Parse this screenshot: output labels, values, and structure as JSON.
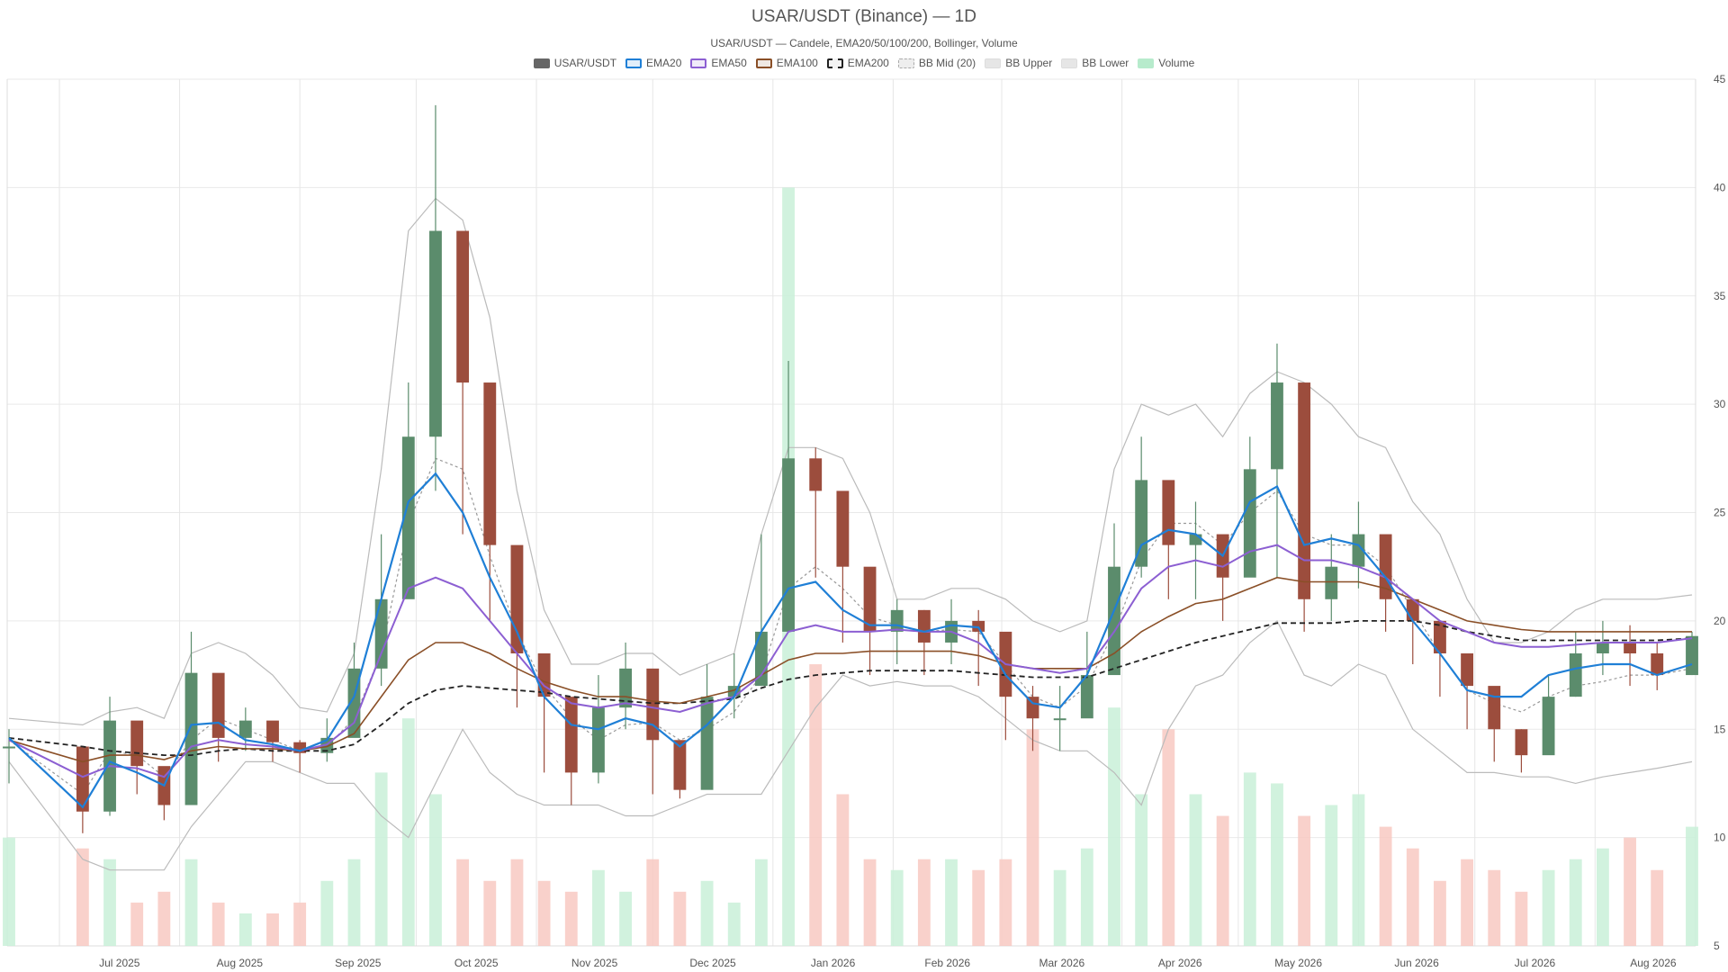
{
  "chart_data": {
    "type": "candlestick",
    "title": "USAR/USDT (Binance) — 1D",
    "subtitle": "USAR/USDT — Candele, EMA20/50/100/200, Bollinger, Volume",
    "legend": [
      {
        "name": "USAR/USDT",
        "color": "#666666",
        "style": "solid-fill"
      },
      {
        "name": "EMA20",
        "color": "#1f7fd6",
        "style": "line"
      },
      {
        "name": "EMA50",
        "color": "#8c5fd2",
        "style": "line"
      },
      {
        "name": "EMA100",
        "color": "#8a4f27",
        "style": "line"
      },
      {
        "name": "EMA200",
        "color": "#222222",
        "style": "dashed"
      },
      {
        "name": "BB Mid (20)",
        "color": "#aaaaaa",
        "style": "dotted"
      },
      {
        "name": "BB Upper",
        "color": "#bbbbbb",
        "style": "line"
      },
      {
        "name": "BB Lower",
        "color": "#bbbbbb",
        "style": "line"
      },
      {
        "name": "Volume",
        "color": "#b7ebcc",
        "style": "fill"
      }
    ],
    "x_labels": [
      "Jul 2025",
      "Aug 2025",
      "Sep 2025",
      "Oct 2025",
      "Nov 2025",
      "Dec 2025",
      "Jan 2026",
      "Feb 2026",
      "Mar 2026",
      "Apr 2026",
      "May 2026",
      "Jun 2026",
      "Jul 2026",
      "Aug 2026"
    ],
    "y_ticks": [
      5,
      10,
      15,
      20,
      25,
      30,
      35,
      40,
      45
    ],
    "ylim": [
      5,
      45
    ],
    "legend_position": "top-center",
    "grid": true,
    "colors": {
      "up": "#5b8c6c",
      "down": "#9c4d3d",
      "vol_up": "#c9f0d8",
      "vol_down": "#f8c9c2"
    },
    "x": [
      "2025-06-18",
      "2025-07-07",
      "2025-07-14",
      "2025-07-21",
      "2025-07-28",
      "2025-08-04",
      "2025-08-11",
      "2025-08-18",
      "2025-08-25",
      "2025-09-01",
      "2025-09-08",
      "2025-09-15",
      "2025-09-22",
      "2025-09-29",
      "2025-10-06",
      "2025-10-13",
      "2025-10-20",
      "2025-10-27",
      "2025-11-03",
      "2025-11-10",
      "2025-11-17",
      "2025-11-24",
      "2025-12-01",
      "2025-12-08",
      "2025-12-15",
      "2025-12-22",
      "2025-12-29",
      "2026-01-05",
      "2026-01-12",
      "2026-01-19",
      "2026-01-26",
      "2026-02-02",
      "2026-02-09",
      "2026-02-16",
      "2026-02-23",
      "2026-03-02",
      "2026-03-09",
      "2026-03-16",
      "2026-03-23",
      "2026-03-30",
      "2026-04-06",
      "2026-04-13",
      "2026-04-20",
      "2026-04-27",
      "2026-05-04",
      "2026-05-11",
      "2026-05-18",
      "2026-05-25",
      "2026-06-01",
      "2026-06-08",
      "2026-06-15",
      "2026-06-22",
      "2026-06-29",
      "2026-07-06",
      "2026-07-13",
      "2026-07-20",
      "2026-07-27",
      "2026-08-03",
      "2026-08-10",
      "2026-08-17",
      "2026-08-26"
    ],
    "close": [
      14.2,
      11.2,
      15.4,
      13.3,
      11.5,
      17.6,
      14.6,
      15.4,
      14.4,
      13.9,
      14.6,
      17.8,
      21.0,
      28.5,
      38.0,
      31.0,
      23.5,
      18.5,
      16.5,
      13.0,
      16.0,
      17.8,
      14.5,
      12.2,
      16.5,
      17.0,
      19.5,
      27.5,
      26.0,
      22.5,
      19.5,
      20.5,
      19.0,
      20.0,
      19.5,
      16.5,
      15.5,
      15.5,
      17.5,
      22.5,
      26.5,
      23.5,
      24.0,
      22.0,
      27.0,
      31.0,
      21.0,
      22.5,
      24.0,
      21.0,
      20.0,
      18.5,
      17.0,
      15.0,
      13.8,
      16.5,
      18.5,
      19.0,
      18.5,
      17.5,
      19.3
    ],
    "high": [
      15.0,
      12.0,
      16.5,
      14.0,
      12.5,
      19.5,
      16.0,
      16.0,
      15.0,
      14.5,
      15.5,
      19.0,
      24.0,
      31.0,
      43.8,
      35.5,
      24.5,
      19.5,
      17.5,
      14.5,
      17.5,
      19.0,
      16.5,
      13.5,
      18.0,
      18.5,
      24.0,
      32.0,
      28.0,
      23.5,
      20.5,
      21.0,
      20.5,
      21.0,
      20.5,
      17.5,
      17.0,
      17.0,
      19.5,
      24.5,
      28.5,
      25.5,
      25.5,
      23.5,
      28.5,
      32.8,
      24.0,
      24.0,
      25.5,
      22.5,
      21.0,
      19.5,
      18.0,
      16.0,
      15.0,
      17.5,
      19.5,
      20.0,
      19.8,
      19.0,
      19.5
    ],
    "low": [
      12.5,
      10.2,
      11.0,
      12.0,
      10.8,
      14.5,
      13.5,
      14.0,
      13.5,
      13.0,
      13.5,
      15.0,
      17.0,
      25.5,
      26.0,
      24.0,
      20.0,
      16.0,
      13.0,
      11.5,
      12.5,
      15.0,
      12.0,
      11.8,
      14.0,
      15.5,
      17.0,
      23.0,
      22.0,
      19.0,
      17.5,
      18.0,
      17.5,
      18.0,
      17.0,
      14.5,
      14.0,
      14.0,
      16.0,
      19.0,
      22.0,
      21.0,
      21.0,
      20.0,
      23.0,
      22.0,
      19.5,
      20.0,
      21.5,
      19.5,
      18.0,
      16.5,
      15.0,
      13.5,
      13.0,
      14.0,
      16.5,
      17.5,
      17.0,
      16.8,
      17.5
    ],
    "volume": [
      10.0,
      9.5,
      9.0,
      7.0,
      7.5,
      9.0,
      7.0,
      6.5,
      6.5,
      7.0,
      8.0,
      9.0,
      13.0,
      15.5,
      12.0,
      9.0,
      8.0,
      9.0,
      8.0,
      7.5,
      8.5,
      7.5,
      9.0,
      7.5,
      8.0,
      7.0,
      9.0,
      40.0,
      18.0,
      12.0,
      9.0,
      8.5,
      9.0,
      9.0,
      8.5,
      9.0,
      15.0,
      8.5,
      9.5,
      16.0,
      12.0,
      15.0,
      12.0,
      11.0,
      13.0,
      12.5,
      11.0,
      11.5,
      12.0,
      10.5,
      9.5,
      8.0,
      9.0,
      8.5,
      7.5,
      8.5,
      9.0,
      9.5,
      10.0,
      8.5,
      10.5
    ],
    "ema20": [
      14.6,
      11.4,
      13.5,
      13.0,
      12.4,
      15.2,
      15.3,
      14.5,
      14.3,
      14.0,
      14.5,
      16.5,
      21.0,
      25.5,
      26.8,
      25.0,
      22.0,
      19.5,
      16.5,
      15.2,
      15.0,
      15.5,
      15.2,
      14.2,
      15.2,
      16.5,
      19.5,
      21.5,
      21.8,
      20.5,
      19.8,
      19.8,
      19.5,
      19.8,
      19.7,
      17.5,
      16.2,
      16.0,
      17.5,
      20.5,
      23.5,
      24.2,
      24.0,
      23.0,
      25.5,
      26.2,
      23.5,
      23.8,
      23.5,
      22.0,
      20.0,
      18.5,
      16.8,
      16.5,
      16.5,
      17.5,
      17.8,
      18.0,
      18.0,
      17.5,
      18.0
    ],
    "ema50": [
      14.5,
      12.8,
      13.3,
      13.2,
      12.8,
      14.2,
      14.5,
      14.3,
      14.2,
      14.0,
      14.3,
      15.3,
      18.5,
      21.5,
      22.0,
      21.5,
      20.0,
      18.5,
      17.0,
      16.2,
      16.0,
      16.2,
      16.0,
      15.8,
      16.2,
      16.5,
      17.5,
      19.5,
      19.8,
      19.5,
      19.5,
      19.6,
      19.5,
      19.5,
      19.0,
      18.0,
      17.8,
      17.6,
      17.8,
      19.5,
      21.5,
      22.5,
      22.8,
      22.5,
      23.2,
      23.5,
      22.8,
      22.8,
      22.5,
      22.0,
      21.0,
      20.0,
      19.5,
      19.0,
      18.8,
      18.8,
      18.9,
      19.0,
      19.0,
      19.0,
      19.2
    ],
    "ema100": [
      14.5,
      13.5,
      13.8,
      13.8,
      13.6,
      14.0,
      14.2,
      14.1,
      14.1,
      14.0,
      14.2,
      14.8,
      16.5,
      18.2,
      19.0,
      19.0,
      18.5,
      17.8,
      17.2,
      16.8,
      16.5,
      16.5,
      16.3,
      16.2,
      16.5,
      16.8,
      17.5,
      18.2,
      18.5,
      18.5,
      18.6,
      18.6,
      18.6,
      18.6,
      18.4,
      18.0,
      17.8,
      17.8,
      17.8,
      18.5,
      19.5,
      20.2,
      20.8,
      21.0,
      21.5,
      22.0,
      21.8,
      21.8,
      21.8,
      21.5,
      21.0,
      20.5,
      20.0,
      19.8,
      19.6,
      19.5,
      19.5,
      19.5,
      19.5,
      19.5,
      19.5
    ],
    "ema200": [
      14.6,
      14.2,
      14.0,
      13.9,
      13.8,
      13.8,
      14.0,
      14.1,
      14.0,
      14.0,
      14.0,
      14.3,
      15.2,
      16.2,
      16.8,
      17.0,
      16.9,
      16.8,
      16.7,
      16.5,
      16.4,
      16.3,
      16.2,
      16.2,
      16.3,
      16.4,
      16.9,
      17.3,
      17.5,
      17.6,
      17.7,
      17.7,
      17.7,
      17.7,
      17.6,
      17.5,
      17.4,
      17.4,
      17.4,
      17.8,
      18.2,
      18.6,
      19.0,
      19.3,
      19.6,
      19.9,
      19.9,
      19.9,
      20.0,
      20.0,
      20.0,
      19.8,
      19.5,
      19.3,
      19.1,
      19.1,
      19.1,
      19.1,
      19.1,
      19.1,
      19.2
    ],
    "bb_mid": [
      14.5,
      12.0,
      14.0,
      13.8,
      12.8,
      14.5,
      15.5,
      15.0,
      14.5,
      14.0,
      14.2,
      15.5,
      18.5,
      24.5,
      27.5,
      27.0,
      23.0,
      19.5,
      17.0,
      15.5,
      14.5,
      15.2,
      15.3,
      14.5,
      15.0,
      15.8,
      17.5,
      21.5,
      22.5,
      21.5,
      20.2,
      19.8,
      19.5,
      19.6,
      19.5,
      18.0,
      16.5,
      16.0,
      17.0,
      19.5,
      22.8,
      24.5,
      24.5,
      23.5,
      25.0,
      26.0,
      24.0,
      23.5,
      23.5,
      22.5,
      20.5,
      18.5,
      16.8,
      16.2,
      15.8,
      16.5,
      17.0,
      17.2,
      17.5,
      17.5,
      17.8
    ],
    "bb_upper": [
      15.5,
      15.2,
      15.8,
      16.0,
      15.5,
      18.5,
      19.0,
      18.5,
      17.5,
      16.0,
      15.8,
      18.5,
      27.0,
      38.0,
      39.5,
      38.5,
      34.0,
      26.0,
      20.5,
      18.0,
      18.0,
      18.5,
      18.5,
      17.5,
      18.0,
      18.5,
      24.0,
      28.0,
      28.0,
      27.5,
      25.0,
      21.0,
      21.0,
      21.5,
      21.5,
      21.0,
      20.0,
      19.5,
      20.0,
      27.0,
      30.0,
      29.5,
      30.0,
      28.5,
      30.5,
      31.5,
      31.0,
      30.0,
      28.5,
      28.0,
      25.5,
      24.0,
      21.0,
      19.0,
      19.0,
      19.5,
      20.5,
      21.0,
      21.0,
      21.0,
      21.2
    ],
    "bb_lower": [
      13.5,
      9.0,
      8.5,
      8.5,
      8.5,
      10.5,
      12.0,
      13.5,
      13.5,
      13.0,
      12.5,
      12.5,
      11.0,
      10.0,
      12.5,
      15.0,
      13.0,
      12.0,
      11.5,
      11.5,
      11.5,
      11.0,
      11.0,
      11.5,
      12.0,
      12.0,
      12.0,
      14.0,
      16.0,
      17.5,
      17.0,
      17.2,
      17.0,
      17.0,
      16.5,
      15.5,
      14.5,
      14.0,
      14.0,
      13.0,
      11.5,
      15.0,
      17.0,
      17.5,
      19.0,
      20.0,
      17.5,
      17.0,
      18.0,
      17.5,
      15.0,
      14.0,
      13.0,
      13.0,
      12.8,
      12.8,
      12.5,
      12.8,
      13.0,
      13.2,
      13.5
    ]
  }
}
